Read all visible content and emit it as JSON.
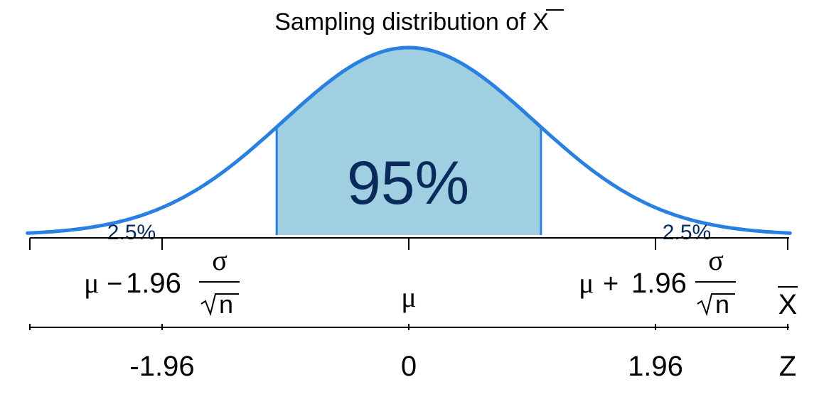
{
  "title": {
    "prefix": "Sampling distribution of ",
    "variable": "X"
  },
  "center_label": "95%",
  "tail_labels": {
    "left": "2.5%",
    "right": "2.5%"
  },
  "xbar_axis": {
    "symbol": "X",
    "center": "μ",
    "left": {
      "mu": "μ",
      "op": "−",
      "coef": "1.96",
      "num": "σ",
      "den": "n"
    },
    "right": {
      "mu": "μ",
      "op": "+",
      "coef": "1.96",
      "num": "σ",
      "den": "n"
    }
  },
  "z_axis": {
    "symbol": "Z",
    "ticks": [
      "-1.96",
      "0",
      "1.96"
    ]
  },
  "colors": {
    "curve": "#2a80e0",
    "fill_center": "#9fcfe1",
    "text_center": "#0a2a5c",
    "axis": "#000000"
  }
}
